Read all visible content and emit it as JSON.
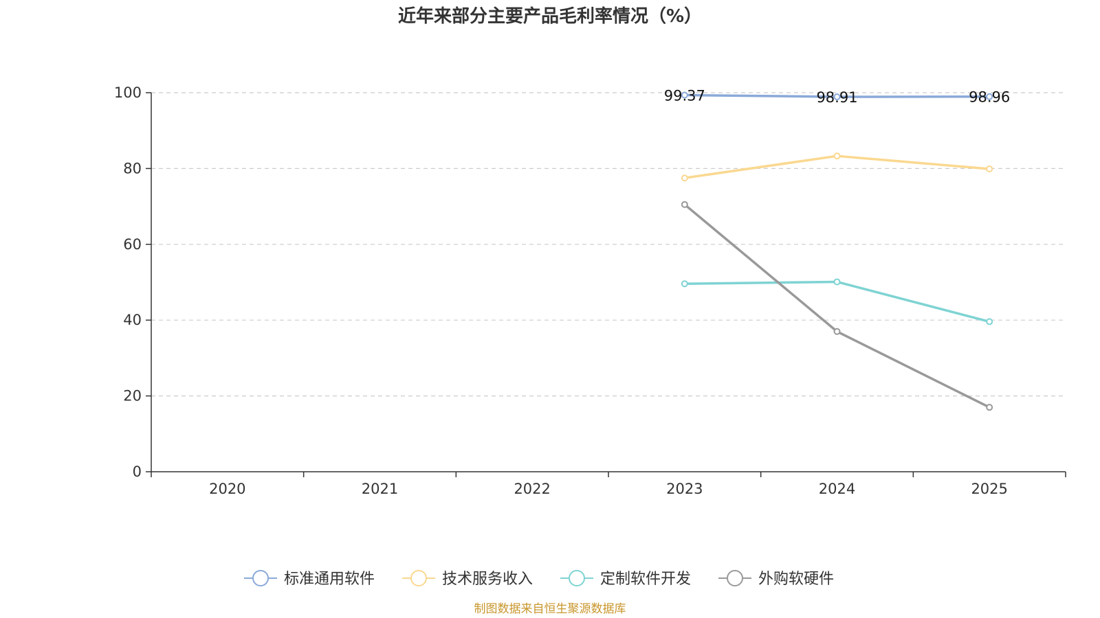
{
  "chart_data": {
    "type": "line",
    "title": "近年来部分主要产品毛利率情况（%）",
    "xlabel": "",
    "ylabel": "",
    "categories": [
      "2020",
      "2021",
      "2022",
      "2023",
      "2024",
      "2025"
    ],
    "ylim": [
      0,
      100
    ],
    "yticks": [
      0,
      20,
      40,
      60,
      80,
      100
    ],
    "grid": true,
    "legend_position": "bottom",
    "series": [
      {
        "name": "标准通用软件",
        "color": "#8aa9d8",
        "values": [
          null,
          null,
          null,
          99.37,
          98.91,
          98.96
        ],
        "show_labels": true,
        "labels": [
          "",
          "",
          "",
          "99.37",
          "98.91",
          "98.96"
        ]
      },
      {
        "name": "技术服务收入",
        "color": "#fad890",
        "values": [
          null,
          null,
          null,
          77.5,
          83.3,
          79.9
        ],
        "show_labels": false,
        "labels": []
      },
      {
        "name": "定制软件开发",
        "color": "#7fd3d3",
        "values": [
          null,
          null,
          null,
          49.6,
          50.1,
          39.6
        ],
        "show_labels": false,
        "labels": []
      },
      {
        "name": "外购软硬件",
        "color": "#999999",
        "values": [
          null,
          null,
          null,
          70.5,
          37.0,
          17.0
        ],
        "show_labels": false,
        "labels": []
      }
    ],
    "source": "制图数据来自恒生聚源数据库",
    "source_color": "#c8962c",
    "axis_color": "#333333",
    "grid_color": "#cccccc"
  }
}
